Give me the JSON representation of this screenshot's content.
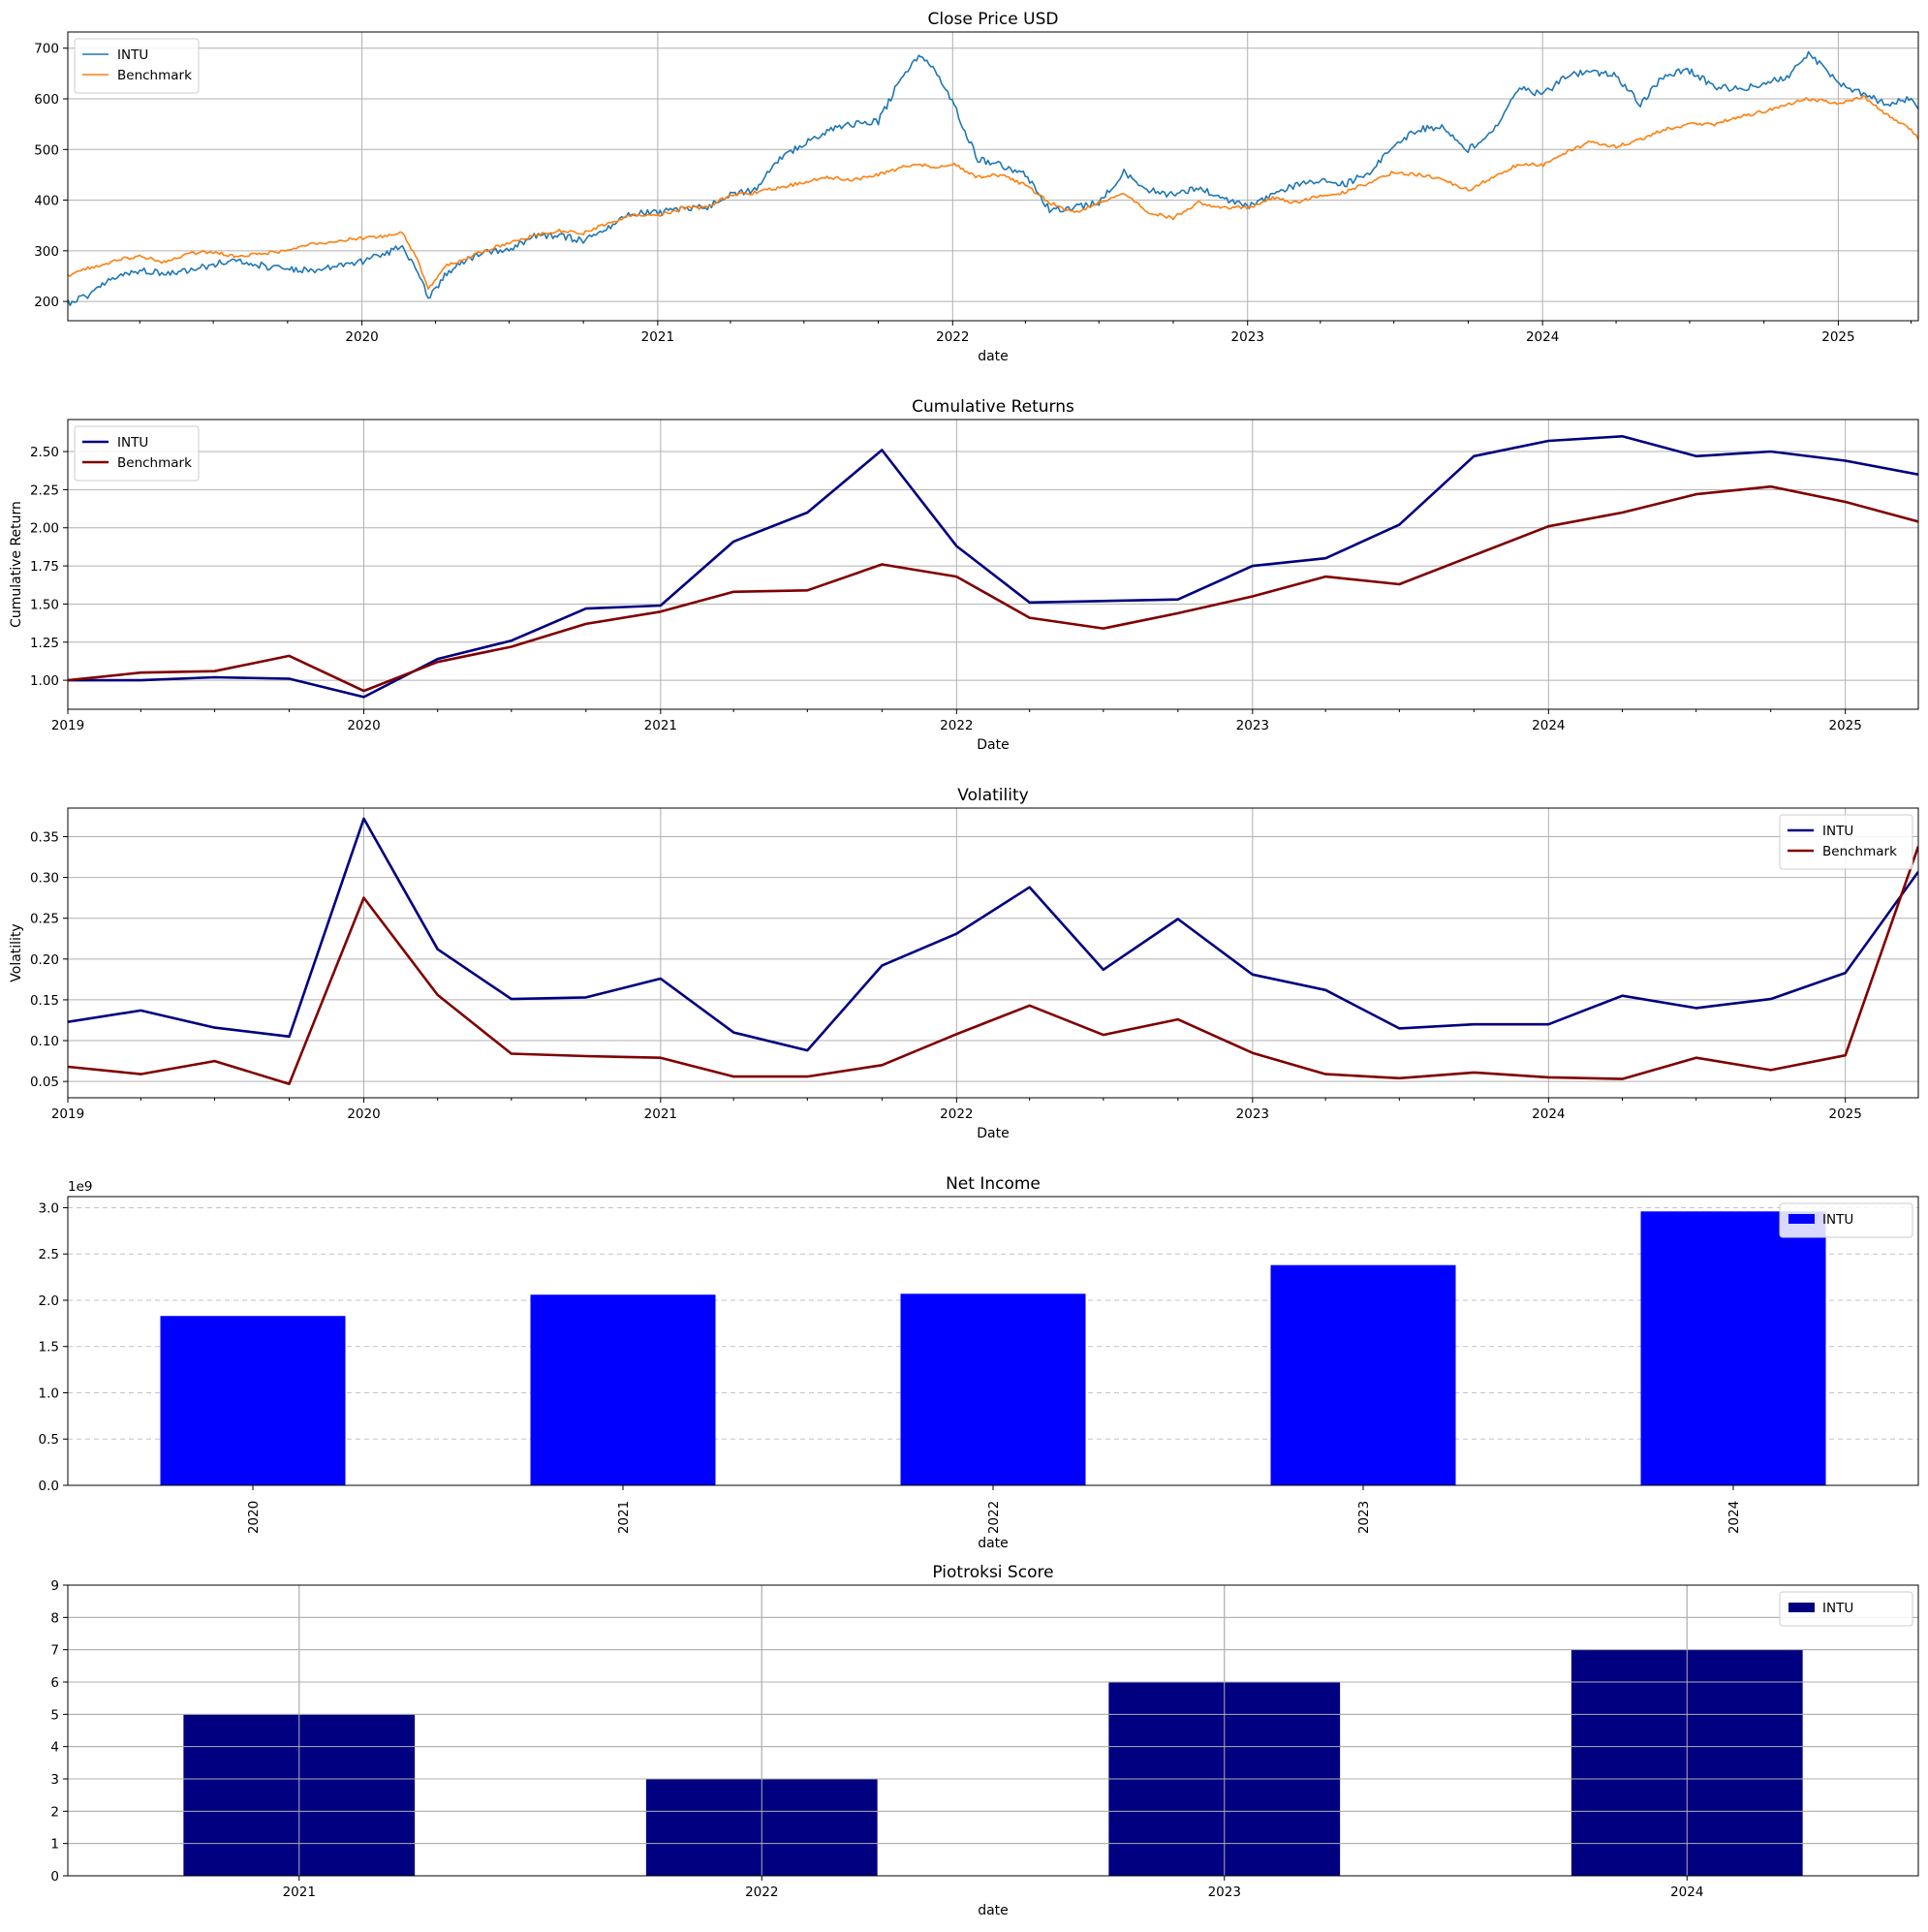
{
  "chart_data": [
    {
      "id": "close_price",
      "type": "line",
      "title": "Close Price USD",
      "xlabel": "date",
      "ylabel": "",
      "xlim": [
        "2019-01-02",
        "2025-04-10"
      ],
      "ylim": [
        162,
        732
      ],
      "yticks": [
        200,
        300,
        400,
        500,
        600,
        700
      ],
      "xticks": [
        "2020",
        "2021",
        "2022",
        "2023",
        "2024",
        "2025"
      ],
      "minor_xticks_quarterly": true,
      "grid": true,
      "legend_position": "upper left",
      "series": [
        {
          "name": "INTU",
          "color": "#1f77b4",
          "points": [
            [
              "2019-01-02",
              197
            ],
            [
              "2019-02-01",
              215
            ],
            [
              "2019-03-01",
              250
            ],
            [
              "2019-04-01",
              262
            ],
            [
              "2019-05-01",
              255
            ],
            [
              "2019-06-01",
              262
            ],
            [
              "2019-07-01",
              273
            ],
            [
              "2019-08-01",
              282
            ],
            [
              "2019-09-01",
              270
            ],
            [
              "2019-10-01",
              262
            ],
            [
              "2019-11-01",
              262
            ],
            [
              "2019-12-01",
              270
            ],
            [
              "2020-01-02",
              280
            ],
            [
              "2020-02-01",
              295
            ],
            [
              "2020-02-20",
              310
            ],
            [
              "2020-03-10",
              260
            ],
            [
              "2020-03-23",
              205
            ],
            [
              "2020-04-15",
              255
            ],
            [
              "2020-05-01",
              275
            ],
            [
              "2020-06-01",
              300
            ],
            [
              "2020-07-01",
              300
            ],
            [
              "2020-08-01",
              330
            ],
            [
              "2020-09-01",
              330
            ],
            [
              "2020-10-01",
              320
            ],
            [
              "2020-11-01",
              345
            ],
            [
              "2020-12-01",
              375
            ],
            [
              "2021-01-04",
              375
            ],
            [
              "2021-02-01",
              385
            ],
            [
              "2021-03-01",
              385
            ],
            [
              "2021-04-01",
              410
            ],
            [
              "2021-05-01",
              420
            ],
            [
              "2021-06-01",
              485
            ],
            [
              "2021-07-01",
              510
            ],
            [
              "2021-08-01",
              540
            ],
            [
              "2021-09-01",
              550
            ],
            [
              "2021-10-01",
              555
            ],
            [
              "2021-11-01",
              650
            ],
            [
              "2021-11-20",
              685
            ],
            [
              "2021-12-10",
              660
            ],
            [
              "2022-01-03",
              585
            ],
            [
              "2022-02-01",
              480
            ],
            [
              "2022-03-01",
              470
            ],
            [
              "2022-04-01",
              450
            ],
            [
              "2022-05-01",
              380
            ],
            [
              "2022-06-01",
              385
            ],
            [
              "2022-07-01",
              395
            ],
            [
              "2022-08-01",
              455
            ],
            [
              "2022-09-01",
              420
            ],
            [
              "2022-10-01",
              410
            ],
            [
              "2022-11-01",
              425
            ],
            [
              "2022-12-01",
              400
            ],
            [
              "2023-01-03",
              390
            ],
            [
              "2023-02-01",
              410
            ],
            [
              "2023-03-01",
              430
            ],
            [
              "2023-04-01",
              440
            ],
            [
              "2023-05-01",
              430
            ],
            [
              "2023-06-01",
              455
            ],
            [
              "2023-07-01",
              510
            ],
            [
              "2023-08-01",
              540
            ],
            [
              "2023-09-01",
              545
            ],
            [
              "2023-10-01",
              500
            ],
            [
              "2023-11-01",
              535
            ],
            [
              "2023-12-01",
              620
            ],
            [
              "2024-01-02",
              610
            ],
            [
              "2024-02-01",
              645
            ],
            [
              "2024-03-01",
              655
            ],
            [
              "2024-04-01",
              645
            ],
            [
              "2024-05-01",
              590
            ],
            [
              "2024-06-01",
              650
            ],
            [
              "2024-07-01",
              655
            ],
            [
              "2024-08-01",
              625
            ],
            [
              "2024-09-01",
              620
            ],
            [
              "2024-10-01",
              630
            ],
            [
              "2024-11-01",
              645
            ],
            [
              "2024-11-25",
              690
            ],
            [
              "2025-01-02",
              630
            ],
            [
              "2025-02-01",
              610
            ],
            [
              "2025-03-01",
              590
            ],
            [
              "2025-04-01",
              600
            ],
            [
              "2025-04-10",
              580
            ]
          ]
        },
        {
          "name": "Benchmark",
          "color": "#ff7f0e",
          "points": [
            [
              "2019-01-02",
              250
            ],
            [
              "2019-02-01",
              268
            ],
            [
              "2019-03-01",
              280
            ],
            [
              "2019-04-01",
              290
            ],
            [
              "2019-05-01",
              278
            ],
            [
              "2019-06-01",
              295
            ],
            [
              "2019-07-01",
              298
            ],
            [
              "2019-08-01",
              288
            ],
            [
              "2019-09-01",
              295
            ],
            [
              "2019-10-01",
              300
            ],
            [
              "2019-11-01",
              313
            ],
            [
              "2019-12-01",
              320
            ],
            [
              "2020-01-02",
              325
            ],
            [
              "2020-02-01",
              330
            ],
            [
              "2020-02-20",
              338
            ],
            [
              "2020-03-10",
              280
            ],
            [
              "2020-03-23",
              225
            ],
            [
              "2020-04-15",
              270
            ],
            [
              "2020-05-01",
              280
            ],
            [
              "2020-06-01",
              300
            ],
            [
              "2020-07-01",
              315
            ],
            [
              "2020-08-01",
              330
            ],
            [
              "2020-09-01",
              340
            ],
            [
              "2020-10-01",
              335
            ],
            [
              "2020-11-01",
              355
            ],
            [
              "2020-12-01",
              370
            ],
            [
              "2021-01-04",
              370
            ],
            [
              "2021-02-01",
              385
            ],
            [
              "2021-03-01",
              385
            ],
            [
              "2021-04-01",
              410
            ],
            [
              "2021-05-01",
              415
            ],
            [
              "2021-06-01",
              425
            ],
            [
              "2021-07-01",
              435
            ],
            [
              "2021-08-01",
              445
            ],
            [
              "2021-09-01",
              440
            ],
            [
              "2021-10-01",
              450
            ],
            [
              "2021-11-01",
              465
            ],
            [
              "2021-11-20",
              470
            ],
            [
              "2021-12-10",
              465
            ],
            [
              "2022-01-03",
              470
            ],
            [
              "2022-02-01",
              445
            ],
            [
              "2022-03-01",
              450
            ],
            [
              "2022-04-01",
              430
            ],
            [
              "2022-05-01",
              395
            ],
            [
              "2022-06-01",
              375
            ],
            [
              "2022-07-01",
              395
            ],
            [
              "2022-08-01",
              415
            ],
            [
              "2022-09-01",
              375
            ],
            [
              "2022-10-01",
              365
            ],
            [
              "2022-11-01",
              395
            ],
            [
              "2022-12-01",
              385
            ],
            [
              "2023-01-03",
              385
            ],
            [
              "2023-02-01",
              405
            ],
            [
              "2023-03-01",
              395
            ],
            [
              "2023-04-01",
              410
            ],
            [
              "2023-05-01",
              415
            ],
            [
              "2023-06-01",
              435
            ],
            [
              "2023-07-01",
              455
            ],
            [
              "2023-08-01",
              450
            ],
            [
              "2023-09-01",
              440
            ],
            [
              "2023-10-01",
              420
            ],
            [
              "2023-11-01",
              445
            ],
            [
              "2023-12-01",
              470
            ],
            [
              "2024-01-02",
              470
            ],
            [
              "2024-02-01",
              495
            ],
            [
              "2024-03-01",
              515
            ],
            [
              "2024-04-01",
              505
            ],
            [
              "2024-05-01",
              520
            ],
            [
              "2024-06-01",
              540
            ],
            [
              "2024-07-01",
              550
            ],
            [
              "2024-08-01",
              550
            ],
            [
              "2024-09-01",
              565
            ],
            [
              "2024-10-01",
              575
            ],
            [
              "2024-11-01",
              590
            ],
            [
              "2024-11-25",
              600
            ],
            [
              "2025-01-02",
              590
            ],
            [
              "2025-02-01",
              605
            ],
            [
              "2025-03-01",
              570
            ],
            [
              "2025-04-01",
              540
            ],
            [
              "2025-04-10",
              520
            ]
          ]
        }
      ]
    },
    {
      "id": "cumulative_returns",
      "type": "line",
      "title": "Cumulative Returns",
      "xlabel": "Date",
      "ylabel": "Cumulative Return",
      "xlim": [
        "2019-01-01",
        "2025-04-01"
      ],
      "ylim": [
        0.81,
        2.71
      ],
      "yticks": [
        1.0,
        1.25,
        1.5,
        1.75,
        2.0,
        2.25,
        2.5
      ],
      "ytick_labels": [
        "1.00",
        "1.25",
        "1.50",
        "1.75",
        "2.00",
        "2.25",
        "2.50"
      ],
      "xticks": [
        "2019",
        "2020",
        "2021",
        "2022",
        "2023",
        "2024",
        "2025"
      ],
      "minor_xticks_quarterly": true,
      "grid": true,
      "legend_position": "upper left",
      "x": [
        "2019-01-01",
        "2019-04-01",
        "2019-07-01",
        "2019-10-01",
        "2020-01-01",
        "2020-04-01",
        "2020-07-01",
        "2020-10-01",
        "2021-01-01",
        "2021-04-01",
        "2021-07-01",
        "2021-10-01",
        "2022-01-01",
        "2022-04-01",
        "2022-07-01",
        "2022-10-01",
        "2023-01-01",
        "2023-04-01",
        "2023-07-01",
        "2023-10-01",
        "2024-01-01",
        "2024-04-01",
        "2024-07-01",
        "2024-10-01",
        "2025-01-01",
        "2025-04-01"
      ],
      "series": [
        {
          "name": "INTU",
          "color": "#000080",
          "values": [
            1.0,
            1.0,
            1.02,
            1.01,
            0.89,
            1.14,
            1.26,
            1.47,
            1.49,
            1.91,
            2.1,
            2.51,
            1.88,
            1.51,
            1.52,
            1.53,
            1.75,
            1.8,
            2.02,
            2.47,
            2.57,
            2.6,
            2.47,
            2.5,
            2.44,
            2.35
          ]
        },
        {
          "name": "Benchmark",
          "color": "#800000",
          "values": [
            1.0,
            1.05,
            1.06,
            1.16,
            0.93,
            1.12,
            1.22,
            1.37,
            1.45,
            1.58,
            1.59,
            1.76,
            1.68,
            1.41,
            1.34,
            1.44,
            1.55,
            1.68,
            1.63,
            1.82,
            2.01,
            2.1,
            2.22,
            2.27,
            2.17,
            2.04
          ]
        }
      ]
    },
    {
      "id": "volatility",
      "type": "line",
      "title": "Volatility",
      "xlabel": "Date",
      "ylabel": "Volatility",
      "xlim": [
        "2019-01-01",
        "2025-04-01"
      ],
      "ylim": [
        0.03,
        0.385
      ],
      "yticks": [
        0.05,
        0.1,
        0.15,
        0.2,
        0.25,
        0.3,
        0.35
      ],
      "ytick_labels": [
        "0.05",
        "0.10",
        "0.15",
        "0.20",
        "0.25",
        "0.30",
        "0.35"
      ],
      "xticks": [
        "2019",
        "2020",
        "2021",
        "2022",
        "2023",
        "2024",
        "2025"
      ],
      "minor_xticks_quarterly": true,
      "grid": true,
      "legend_position": "upper right",
      "x": [
        "2019-01-01",
        "2019-04-01",
        "2019-07-01",
        "2019-10-01",
        "2020-01-01",
        "2020-04-01",
        "2020-07-01",
        "2020-10-01",
        "2021-01-01",
        "2021-04-01",
        "2021-07-01",
        "2021-10-01",
        "2022-01-01",
        "2022-04-01",
        "2022-07-01",
        "2022-10-01",
        "2023-01-01",
        "2023-04-01",
        "2023-07-01",
        "2023-10-01",
        "2024-01-01",
        "2024-04-01",
        "2024-07-01",
        "2024-10-01",
        "2025-01-01",
        "2025-04-01"
      ],
      "series": [
        {
          "name": "INTU",
          "color": "#000080",
          "values": [
            0.123,
            0.137,
            0.116,
            0.105,
            0.372,
            0.212,
            0.151,
            0.153,
            0.176,
            0.11,
            0.088,
            0.192,
            0.231,
            0.288,
            0.187,
            0.249,
            0.181,
            0.162,
            0.115,
            0.12,
            0.12,
            0.155,
            0.14,
            0.151,
            0.183,
            0.307
          ]
        },
        {
          "name": "Benchmark",
          "color": "#800000",
          "values": [
            0.068,
            0.059,
            0.075,
            0.047,
            0.275,
            0.156,
            0.084,
            0.081,
            0.079,
            0.056,
            0.056,
            0.07,
            0.108,
            0.143,
            0.107,
            0.126,
            0.085,
            0.059,
            0.054,
            0.061,
            0.055,
            0.053,
            0.079,
            0.064,
            0.082,
            0.338
          ]
        }
      ]
    },
    {
      "id": "net_income",
      "type": "bar",
      "title": "Net Income",
      "xlabel": "date",
      "ylabel": "",
      "offset_label": "1e9",
      "ylim": [
        0,
        3.12
      ],
      "yticks": [
        0.0,
        0.5,
        1.0,
        1.5,
        2.0,
        2.5,
        3.0
      ],
      "ytick_labels": [
        "0.0",
        "0.5",
        "1.0",
        "1.5",
        "2.0",
        "2.5",
        "3.0"
      ],
      "categories": [
        "2020",
        "2021",
        "2022",
        "2023",
        "2024"
      ],
      "category_label_rotation": -90,
      "grid": "y-dashed",
      "legend_position": "upper right",
      "series": [
        {
          "name": "INTU",
          "color": "#0000ff",
          "values": [
            1.83,
            2.06,
            2.07,
            2.38,
            2.96
          ]
        }
      ]
    },
    {
      "id": "piotroski",
      "type": "bar",
      "title": "Piotroksi Score",
      "xlabel": "date",
      "ylabel": "",
      "ylim": [
        0,
        9
      ],
      "yticks": [
        0,
        1,
        2,
        3,
        4,
        5,
        6,
        7,
        8,
        9
      ],
      "ytick_labels": [
        "0",
        "1",
        "2",
        "3",
        "4",
        "5",
        "6",
        "7",
        "8",
        "9"
      ],
      "categories": [
        "2021",
        "2022",
        "2023",
        "2024"
      ],
      "grid": true,
      "legend_position": "upper right",
      "series": [
        {
          "name": "INTU",
          "color": "#000080",
          "values": [
            5,
            3,
            6,
            7
          ]
        }
      ]
    }
  ]
}
